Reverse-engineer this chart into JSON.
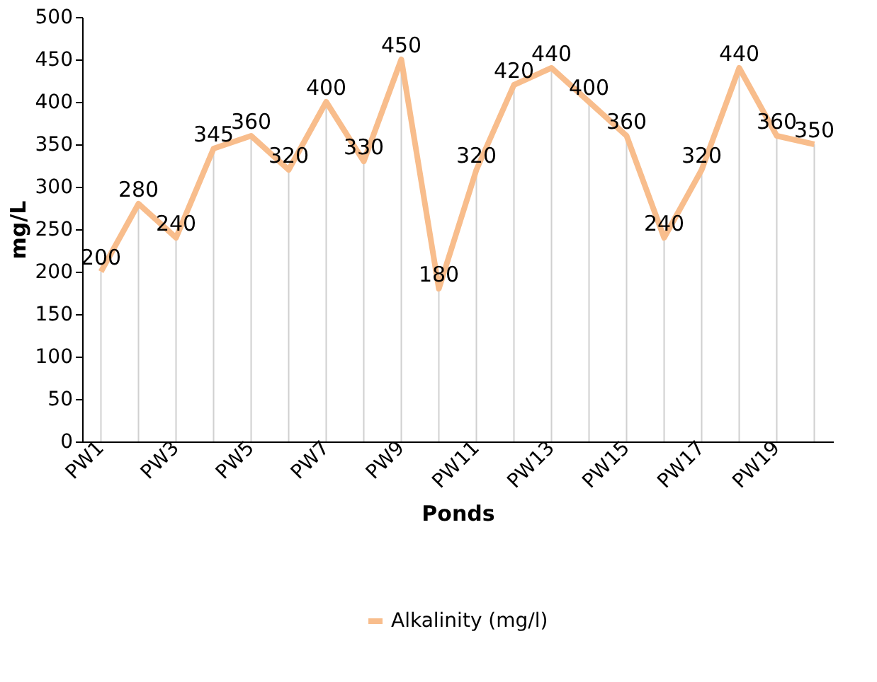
{
  "chart_data": {
    "type": "line",
    "xlabel": "Ponds",
    "ylabel": "mg/L",
    "categories": [
      "PW1",
      null,
      "PW3",
      null,
      "PW5",
      null,
      "PW7",
      null,
      "PW9",
      null,
      "PW11",
      null,
      "PW13",
      null,
      "PW15",
      null,
      "PW17",
      null,
      "PW19",
      null
    ],
    "series": [
      {
        "name": "Alkalinity (mg/l)",
        "color": "#f8bd8c",
        "values": [
          200,
          280,
          240,
          345,
          360,
          320,
          400,
          330,
          450,
          180,
          320,
          420,
          440,
          400,
          360,
          240,
          320,
          440,
          360,
          350
        ]
      }
    ],
    "ylim": [
      0,
      500
    ],
    "yticks": [
      0,
      50,
      100,
      150,
      200,
      250,
      300,
      350,
      400,
      450,
      500
    ],
    "data_labels": true,
    "legend": "bottom",
    "grid": "x",
    "marker": "none",
    "line_style": "solid"
  }
}
